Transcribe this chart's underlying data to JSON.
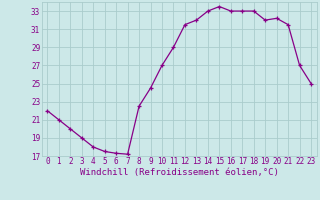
{
  "x": [
    0,
    1,
    2,
    3,
    4,
    5,
    6,
    7,
    8,
    9,
    10,
    11,
    12,
    13,
    14,
    15,
    16,
    17,
    18,
    19,
    20,
    21,
    22,
    23
  ],
  "y": [
    22.0,
    21.0,
    20.0,
    19.0,
    18.0,
    17.5,
    17.3,
    17.2,
    22.5,
    24.5,
    27.0,
    29.0,
    31.5,
    32.0,
    33.0,
    33.5,
    33.0,
    33.0,
    33.0,
    32.0,
    32.2,
    31.5,
    27.0,
    25.0
  ],
  "line_color": "#880088",
  "marker": "+",
  "bg_color": "#cce8e8",
  "grid_color": "#aacccc",
  "xlabel": "Windchill (Refroidissement éolien,°C)",
  "ylim": [
    17,
    34
  ],
  "xlim": [
    -0.5,
    23.5
  ],
  "yticks": [
    17,
    19,
    21,
    23,
    25,
    27,
    29,
    31,
    33
  ],
  "xticks": [
    0,
    1,
    2,
    3,
    4,
    5,
    6,
    7,
    8,
    9,
    10,
    11,
    12,
    13,
    14,
    15,
    16,
    17,
    18,
    19,
    20,
    21,
    22,
    23
  ],
  "tick_fontsize": 5.5,
  "xlabel_fontsize": 6.5,
  "label_color": "#880088",
  "markersize": 3.5,
  "linewidth": 0.9
}
